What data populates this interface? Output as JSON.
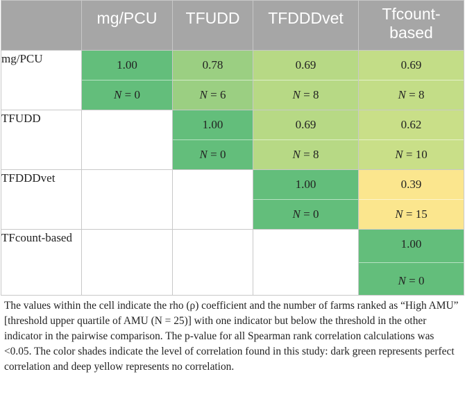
{
  "table": {
    "corner": "",
    "columns": [
      "mg/PCU",
      "TFUDD",
      "TFDDDvet",
      "Tfcount-based"
    ],
    "rows": [
      {
        "label": "mg/PCU",
        "cells": [
          {
            "rho": "1.00",
            "n_label": "N",
            "n_value": "= 0",
            "color": "#63be7b"
          },
          {
            "rho": "0.78",
            "n_label": "N",
            "n_value": "= 6",
            "color": "#9bcf82"
          },
          {
            "rho": "0.69",
            "n_label": "N",
            "n_value": "= 8",
            "color": "#b7d985"
          },
          {
            "rho": "0.69",
            "n_label": "N",
            "n_value": "= 8",
            "color": "#c3dd87"
          }
        ]
      },
      {
        "label": "TFUDD",
        "cells": [
          null,
          {
            "rho": "1.00",
            "n_label": "N",
            "n_value": "= 0",
            "color": "#63be7b"
          },
          {
            "rho": "0.69",
            "n_label": "N",
            "n_value": "= 8",
            "color": "#b7d985"
          },
          {
            "rho": "0.62",
            "n_label": "N",
            "n_value": "= 10",
            "color": "#c9df88"
          }
        ]
      },
      {
        "label": "TFDDDvet",
        "cells": [
          null,
          null,
          {
            "rho": "1.00",
            "n_label": "N",
            "n_value": "= 0",
            "color": "#63be7b"
          },
          {
            "rho": "0.39",
            "n_label": "N",
            "n_value": "= 15",
            "color": "#fbe68e"
          }
        ]
      },
      {
        "label": "TFcount-based",
        "cells": [
          null,
          null,
          null,
          {
            "rho": "1.00",
            "n_label": "N",
            "n_value": "= 0",
            "color": "#63be7b"
          }
        ]
      }
    ]
  },
  "footnote": "The values within the cell indicate the rho (ρ) coefficient and the number of farms ranked as “High AMU” [threshold upper quartile of AMU (N = 25)] with one indicator but below the threshold in the other indicator in the pairwise comparison. The p-value for all Spearman rank correlation calculations was <0.05. The color shades indicate the level of correlation found in this study: dark green represents perfect correlation and deep yellow represents no correlation."
}
